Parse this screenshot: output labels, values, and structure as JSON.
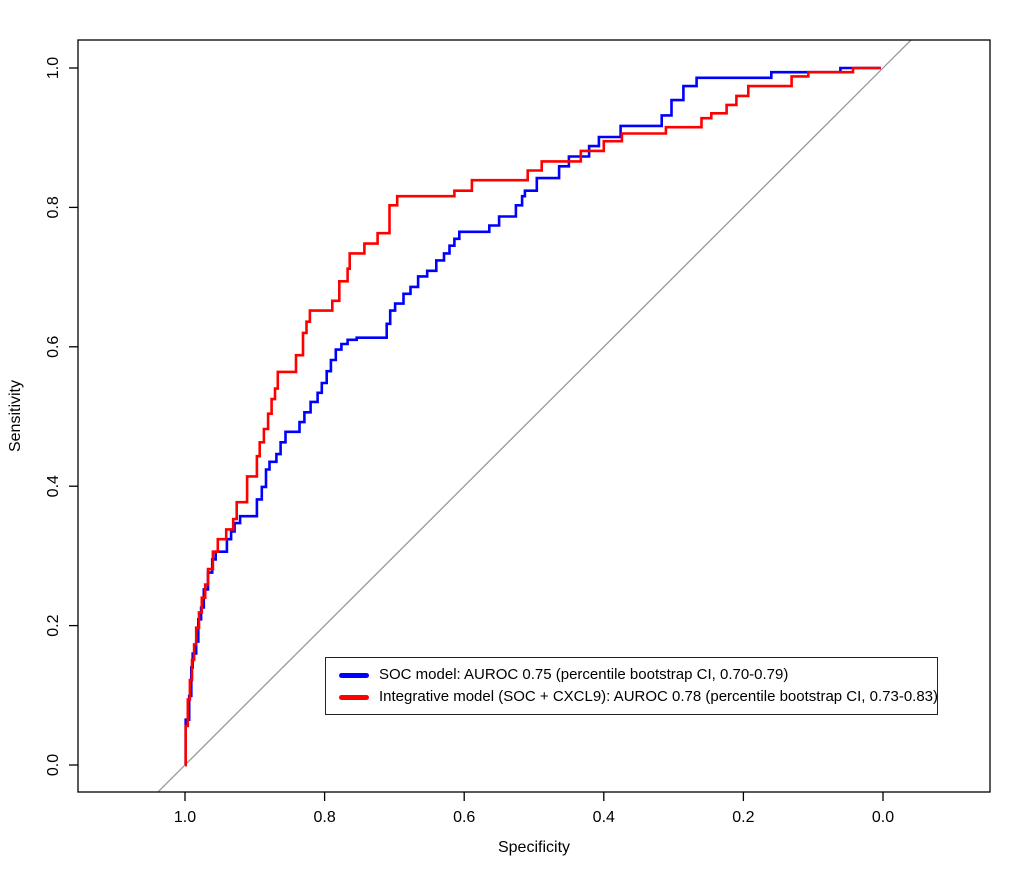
{
  "chart_data": {
    "type": "line",
    "subtype": "roc-step-curves",
    "title": "",
    "xlabel": "Specificity",
    "ylabel": "Sensitivity",
    "x_reversed": true,
    "grid": false,
    "xlim": [
      1.15,
      -0.15
    ],
    "ylim": [
      -0.04,
      1.04
    ],
    "x_ticks": {
      "labels": [
        "1.0",
        "0.8",
        "0.6",
        "0.4",
        "0.2",
        "0.0"
      ],
      "values": [
        1.0,
        0.8,
        0.6,
        0.4,
        0.2,
        0.0
      ]
    },
    "y_ticks": {
      "labels": [
        "0.0",
        "0.2",
        "0.4",
        "0.6",
        "0.8",
        "1.0"
      ],
      "values": [
        0.0,
        0.2,
        0.4,
        0.6,
        0.8,
        1.0
      ]
    },
    "diagonal": {
      "color": "#999999",
      "from": [
        1.039,
        -0.039
      ],
      "to": [
        -0.04,
        1.04
      ]
    },
    "legend_position": "inside-bottom-center",
    "series": [
      {
        "name": "SOC model: AUROC 0.75 (percentile bootstrap CI, 0.70-0.79)",
        "auroc": 0.75,
        "ci": "0.70-0.79",
        "color": "#0000FF",
        "points": [
          [
            1.0,
            0.0
          ],
          [
            0.999,
            0.065
          ],
          [
            0.994,
            0.099
          ],
          [
            0.991,
            0.14
          ],
          [
            0.989,
            0.16
          ],
          [
            0.984,
            0.177
          ],
          [
            0.981,
            0.209
          ],
          [
            0.977,
            0.226
          ],
          [
            0.973,
            0.252
          ],
          [
            0.967,
            0.276
          ],
          [
            0.961,
            0.295
          ],
          [
            0.956,
            0.306
          ],
          [
            0.94,
            0.324
          ],
          [
            0.934,
            0.335
          ],
          [
            0.929,
            0.347
          ],
          [
            0.921,
            0.357
          ],
          [
            0.897,
            0.381
          ],
          [
            0.89,
            0.399
          ],
          [
            0.884,
            0.424
          ],
          [
            0.879,
            0.435
          ],
          [
            0.869,
            0.446
          ],
          [
            0.863,
            0.463
          ],
          [
            0.856,
            0.478
          ],
          [
            0.836,
            0.492
          ],
          [
            0.829,
            0.506
          ],
          [
            0.82,
            0.521
          ],
          [
            0.81,
            0.534
          ],
          [
            0.804,
            0.548
          ],
          [
            0.797,
            0.565
          ],
          [
            0.791,
            0.581
          ],
          [
            0.784,
            0.596
          ],
          [
            0.776,
            0.604
          ],
          [
            0.767,
            0.61
          ],
          [
            0.754,
            0.613
          ],
          [
            0.711,
            0.633
          ],
          [
            0.706,
            0.652
          ],
          [
            0.699,
            0.662
          ],
          [
            0.687,
            0.676
          ],
          [
            0.677,
            0.686
          ],
          [
            0.666,
            0.701
          ],
          [
            0.653,
            0.709
          ],
          [
            0.64,
            0.724
          ],
          [
            0.629,
            0.734
          ],
          [
            0.621,
            0.745
          ],
          [
            0.614,
            0.755
          ],
          [
            0.607,
            0.765
          ],
          [
            0.564,
            0.774
          ],
          [
            0.55,
            0.787
          ],
          [
            0.526,
            0.803
          ],
          [
            0.517,
            0.816
          ],
          [
            0.513,
            0.824
          ],
          [
            0.496,
            0.842
          ],
          [
            0.464,
            0.859
          ],
          [
            0.45,
            0.873
          ],
          [
            0.421,
            0.888
          ],
          [
            0.407,
            0.901
          ],
          [
            0.376,
            0.917
          ],
          [
            0.317,
            0.932
          ],
          [
            0.303,
            0.954
          ],
          [
            0.286,
            0.974
          ],
          [
            0.267,
            0.986
          ],
          [
            0.16,
            0.994
          ],
          [
            0.061,
            1.0
          ],
          [
            0.003,
            1.0
          ]
        ]
      },
      {
        "name": "Integrative model (SOC + CXCL9): AUROC 0.78 (percentile bootstrap CI, 0.73-0.83)",
        "auroc": 0.78,
        "ci": "0.73-0.83",
        "color": "#FF0000",
        "points": [
          [
            1.0,
            0.0
          ],
          [
            0.999,
            0.056
          ],
          [
            0.996,
            0.094
          ],
          [
            0.993,
            0.122
          ],
          [
            0.99,
            0.151
          ],
          [
            0.987,
            0.173
          ],
          [
            0.984,
            0.197
          ],
          [
            0.98,
            0.219
          ],
          [
            0.976,
            0.24
          ],
          [
            0.971,
            0.259
          ],
          [
            0.967,
            0.281
          ],
          [
            0.96,
            0.306
          ],
          [
            0.953,
            0.324
          ],
          [
            0.941,
            0.338
          ],
          [
            0.931,
            0.353
          ],
          [
            0.926,
            0.377
          ],
          [
            0.911,
            0.414
          ],
          [
            0.897,
            0.443
          ],
          [
            0.893,
            0.463
          ],
          [
            0.887,
            0.482
          ],
          [
            0.881,
            0.504
          ],
          [
            0.876,
            0.525
          ],
          [
            0.871,
            0.54
          ],
          [
            0.867,
            0.564
          ],
          [
            0.841,
            0.588
          ],
          [
            0.831,
            0.62
          ],
          [
            0.826,
            0.636
          ],
          [
            0.821,
            0.652
          ],
          [
            0.789,
            0.666
          ],
          [
            0.779,
            0.694
          ],
          [
            0.767,
            0.712
          ],
          [
            0.764,
            0.734
          ],
          [
            0.743,
            0.748
          ],
          [
            0.724,
            0.763
          ],
          [
            0.707,
            0.803
          ],
          [
            0.696,
            0.816
          ],
          [
            0.614,
            0.824
          ],
          [
            0.589,
            0.839
          ],
          [
            0.509,
            0.853
          ],
          [
            0.489,
            0.866
          ],
          [
            0.433,
            0.881
          ],
          [
            0.4,
            0.895
          ],
          [
            0.374,
            0.906
          ],
          [
            0.311,
            0.915
          ],
          [
            0.26,
            0.928
          ],
          [
            0.246,
            0.935
          ],
          [
            0.224,
            0.947
          ],
          [
            0.21,
            0.96
          ],
          [
            0.193,
            0.974
          ],
          [
            0.131,
            0.988
          ],
          [
            0.107,
            0.994
          ],
          [
            0.043,
            1.0
          ],
          [
            0.003,
            1.0
          ]
        ]
      }
    ]
  },
  "legend": {
    "items": [
      {
        "label": "SOC model: AUROC 0.75 (percentile bootstrap CI, 0.70-0.79)",
        "color": "#0000FF"
      },
      {
        "label": "Integrative model (SOC + CXCL9): AUROC 0.78 (percentile bootstrap CI, 0.73-0.83)",
        "color": "#FF0000"
      }
    ]
  }
}
